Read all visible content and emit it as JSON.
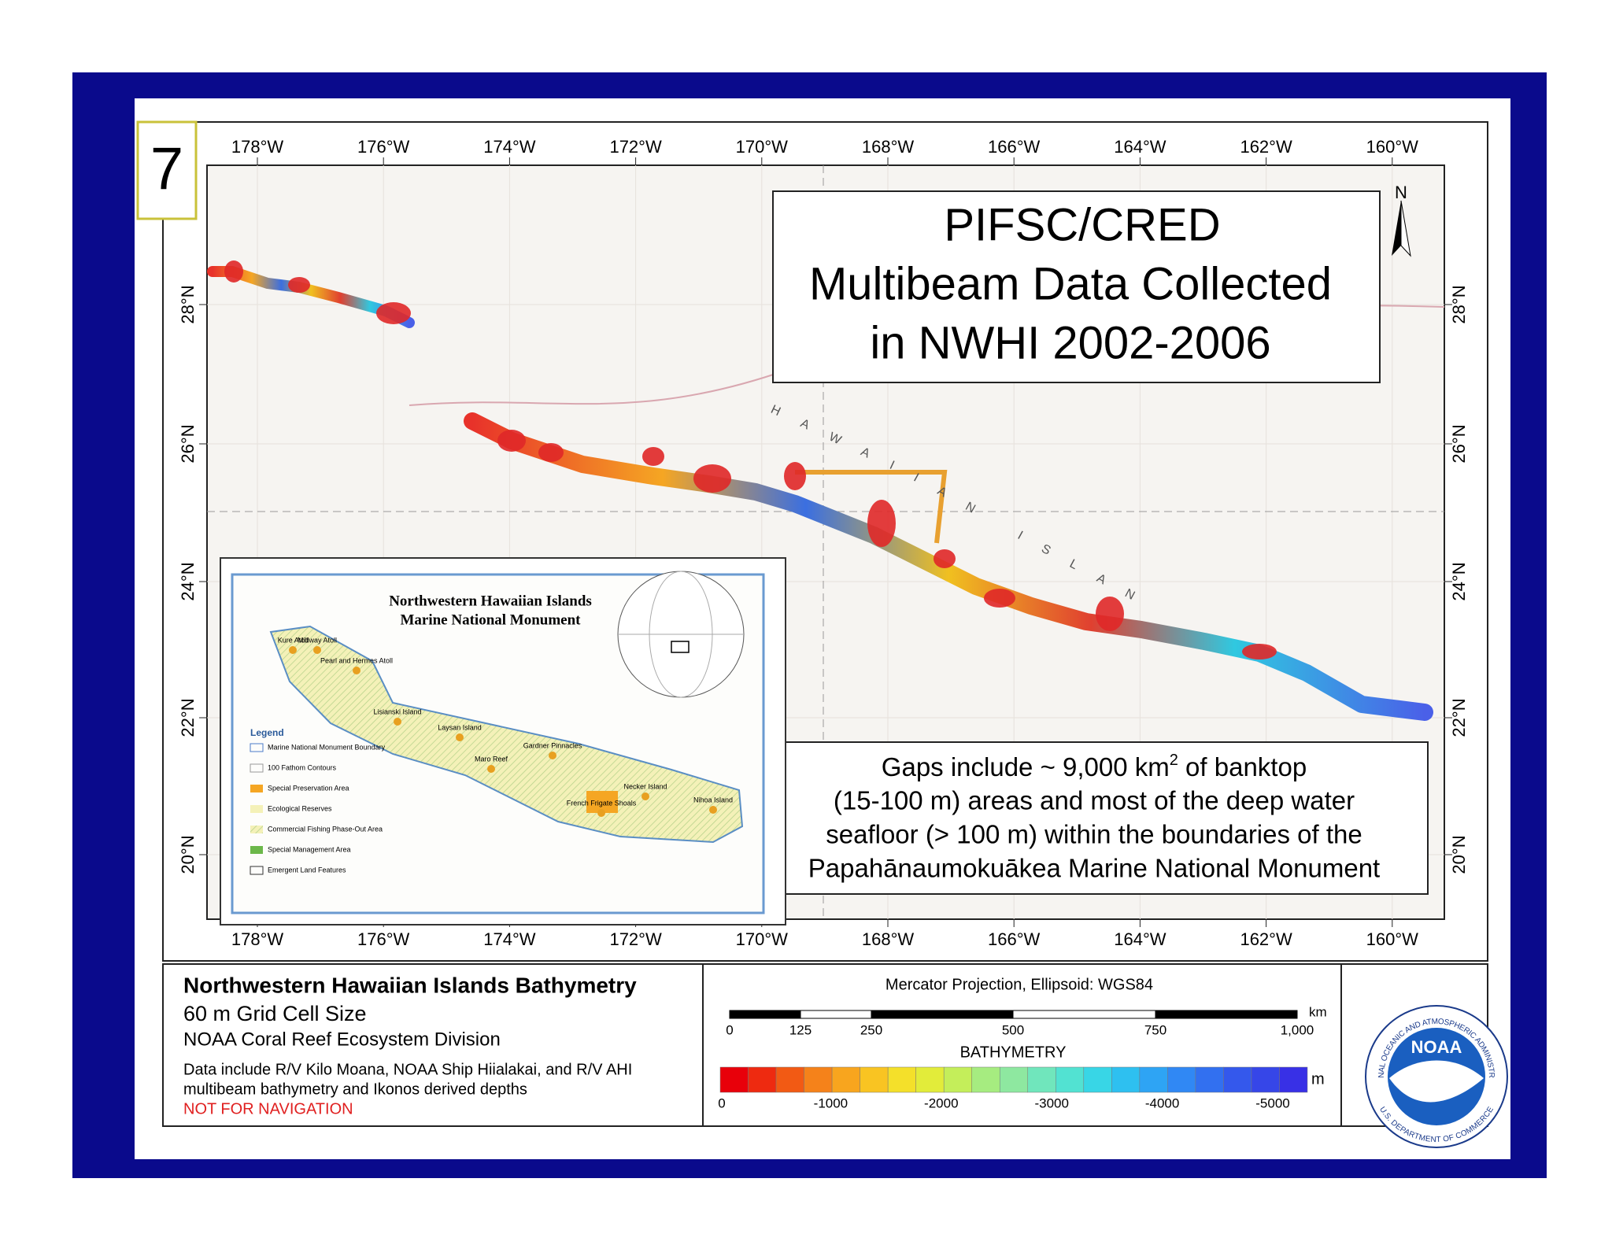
{
  "slide_number": "7",
  "title": {
    "lines": [
      "PIFSC/CRED",
      "Multibeam Data Collected",
      "in NWHI 2002-2006"
    ]
  },
  "map": {
    "longitudes": [
      "178°W",
      "176°W",
      "174°W",
      "172°W",
      "170°W",
      "168°W",
      "166°W",
      "164°W",
      "162°W",
      "160°W"
    ],
    "latitudes": [
      "28°N",
      "26°N",
      "24°N",
      "22°N",
      "20°N"
    ],
    "chain_label": "HAWAIIAN ISLANDS",
    "north": "N"
  },
  "note": {
    "line1": {
      "before": "Gaps include ~ 9,000 km",
      "superscript": "2",
      "after": " of banktop"
    },
    "lines": [
      "(15-100 m) areas and most of the deep water",
      "seafloor (> 100 m) within the boundaries of the",
      "Papahānaumokuākea Marine National Monument"
    ]
  },
  "inset": {
    "title": [
      "Northwestern Hawaiian Islands",
      "Marine National Monument"
    ],
    "legend_title": "Legend",
    "legend_items": [
      "Marine National Monument Boundary",
      "100 Fathom Contours",
      "Special Preservation Area",
      "Ecological Reserves",
      "Commercial Fishing Phase-Out Area",
      "Special Management Area",
      "Emergent Land Features"
    ],
    "places": [
      "Kure Atoll",
      "Midway Atoll",
      "Pearl and Hermes Atoll",
      "Lisianski Island",
      "Laysan Island",
      "Maro Reef",
      "Gardner Pinnacles",
      "French Frigate Shoals",
      "Necker Island",
      "Nihoa Island"
    ]
  },
  "info": {
    "title": "Northwestern Hawaiian Islands Bathymetry",
    "grid": "60 m Grid Cell Size",
    "division": "NOAA Coral Reef Ecosystem Division",
    "data_lines": [
      "Data include R/V Kilo Moana, NOAA Ship Hiialakai, and R/V AHI",
      "multibeam bathymetry and Ikonos derived depths"
    ],
    "warning": "NOT FOR NAVIGATION"
  },
  "scale": {
    "projection": "Mercator Projection, Ellipsoid: WGS84",
    "labels": [
      "0",
      "125",
      "250",
      "500",
      "750",
      "1,000"
    ],
    "unit": "km"
  },
  "bathymetry": {
    "title": "BATHYMETRY",
    "labels": [
      "0",
      "-1000",
      "-2000",
      "-3000",
      "-4000",
      "-5000"
    ],
    "unit": "m"
  },
  "logo": {
    "name": "NOAA",
    "ring_top": "NATIONAL OCEANIC AND ATMOSPHERIC ADMINISTRATION",
    "ring_bottom": "U.S. DEPARTMENT OF COMMERCE"
  }
}
